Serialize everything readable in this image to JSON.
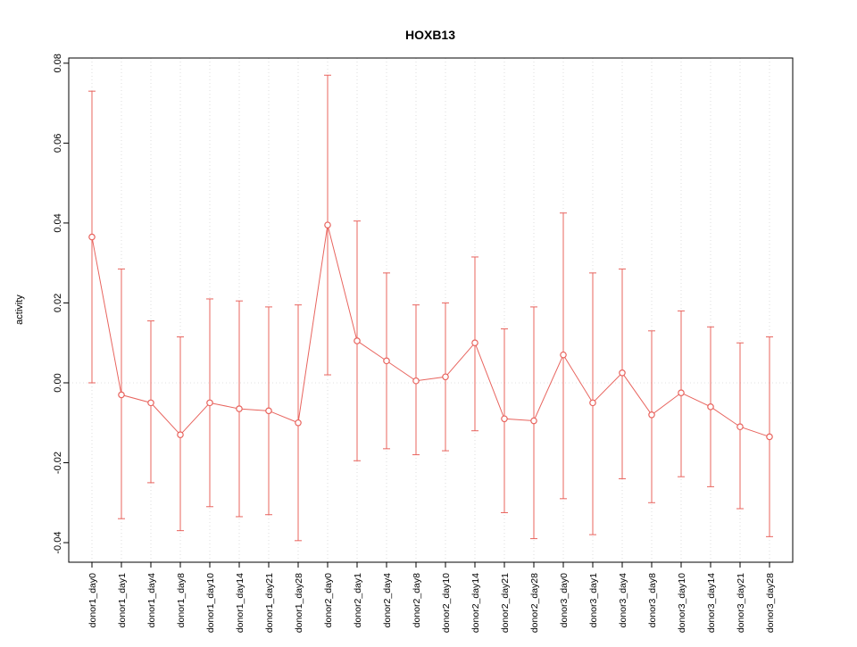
{
  "chart_data": {
    "type": "line",
    "title": "HOXB13",
    "xlabel": "",
    "ylabel": "activity",
    "ylim": [
      -0.0449,
      0.0813
    ],
    "grid": "vertical-dotted-per-category-plus-dotted-zero-line",
    "legend": "none",
    "colors": {
      "series": "#E8645E",
      "gridline": "#DCDCDC",
      "zero_line": "#E0E0E0",
      "axis": "#000000"
    },
    "yticks": [
      {
        "value": -0.04,
        "label": "-0.04"
      },
      {
        "value": -0.02,
        "label": "-0.02"
      },
      {
        "value": 0.0,
        "label": "0.00"
      },
      {
        "value": 0.02,
        "label": "0.02"
      },
      {
        "value": 0.04,
        "label": "0.04"
      },
      {
        "value": 0.06,
        "label": "0.06"
      },
      {
        "value": 0.08,
        "label": "0.08"
      }
    ],
    "categories": [
      "donor1_day0",
      "donor1_day1",
      "donor1_day4",
      "donor1_day8",
      "donor1_day10",
      "donor1_day14",
      "donor1_day21",
      "donor1_day28",
      "donor2_day0",
      "donor2_day1",
      "donor2_day4",
      "donor2_day8",
      "donor2_day10",
      "donor2_day14",
      "donor2_day21",
      "donor2_day28",
      "donor3_day0",
      "donor3_day1",
      "donor3_day4",
      "donor3_day8",
      "donor3_day10",
      "donor3_day14",
      "donor3_day21",
      "donor3_day28"
    ],
    "series": [
      {
        "name": "activity",
        "marker": "open-circle",
        "values": [
          0.0365,
          -0.003,
          -0.005,
          -0.013,
          -0.005,
          -0.0065,
          -0.007,
          -0.01,
          0.0395,
          0.0105,
          0.0055,
          0.0005,
          0.0015,
          0.01,
          -0.009,
          -0.0095,
          0.007,
          -0.005,
          0.0025,
          -0.008,
          -0.0025,
          -0.006,
          -0.011,
          -0.0135
        ],
        "lower": [
          0.0,
          -0.034,
          -0.025,
          -0.037,
          -0.031,
          -0.0335,
          -0.033,
          -0.0395,
          0.002,
          -0.0195,
          -0.0165,
          -0.018,
          -0.017,
          -0.012,
          -0.0325,
          -0.039,
          -0.029,
          -0.038,
          -0.024,
          -0.03,
          -0.0235,
          -0.026,
          -0.0315,
          -0.0385
        ],
        "upper": [
          0.073,
          0.0285,
          0.0155,
          0.0115,
          0.021,
          0.0205,
          0.019,
          0.0195,
          0.077,
          0.0405,
          0.0275,
          0.0195,
          0.02,
          0.0315,
          0.0135,
          0.019,
          0.0425,
          0.0275,
          0.0285,
          0.013,
          0.018,
          0.014,
          0.01,
          0.0115
        ]
      }
    ]
  }
}
